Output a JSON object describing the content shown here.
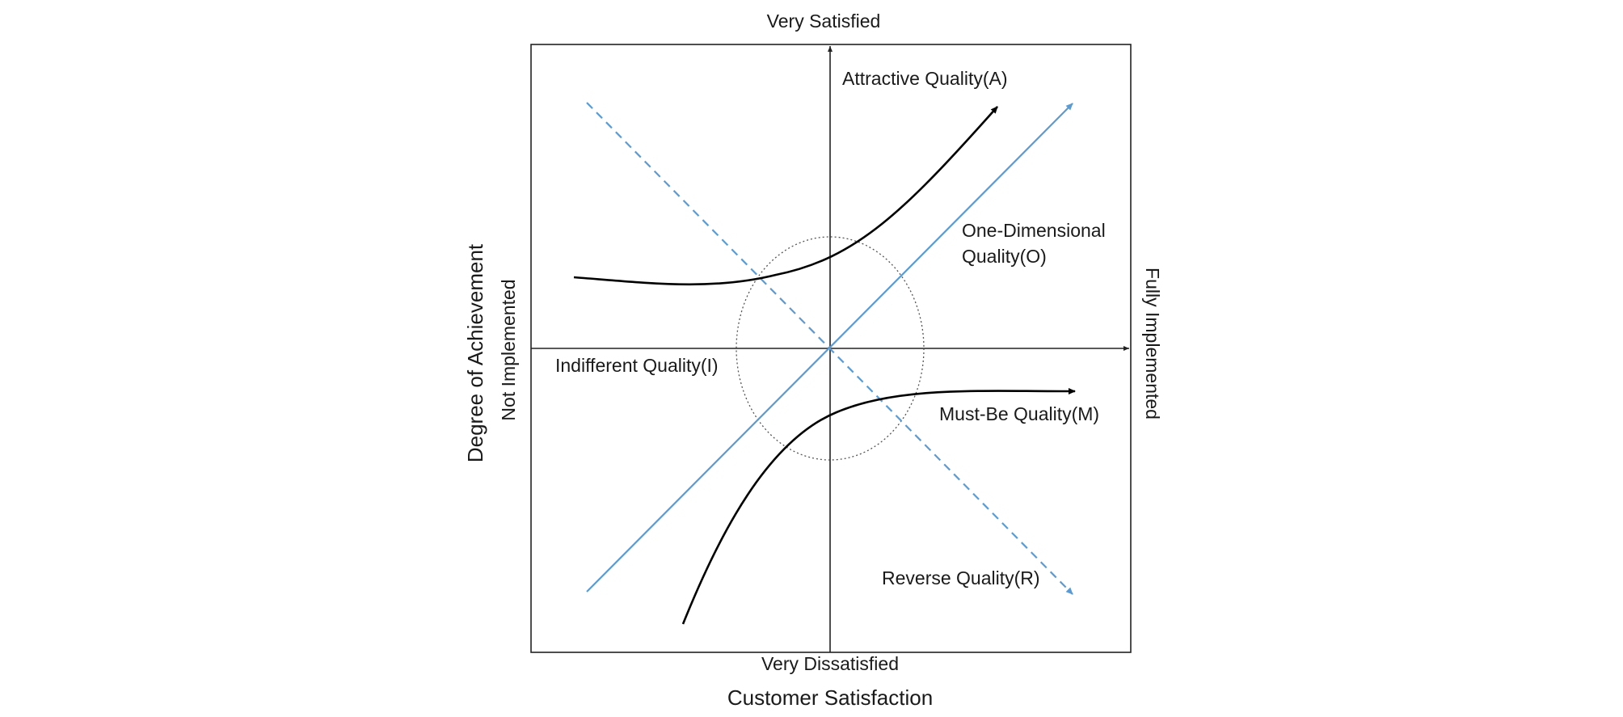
{
  "diagram": {
    "top_label": "Very Satisfied",
    "bottom_label": "Very Dissatisfied",
    "left_label": "Not Implemented",
    "right_label": "Fully Implemented",
    "x_axis_title": "Customer Satisfaction",
    "y_axis_title": "Degree of Achievement",
    "curves": {
      "attractive": "Attractive Quality(A)",
      "one_dimensional_line1": "One-Dimensional",
      "one_dimensional_line2": "Quality(O)",
      "indifferent": "Indifferent Quality(I)",
      "must_be": "Must-Be Quality(M)",
      "reverse": "Reverse Quality(R)"
    },
    "colors": {
      "line_blue": "#5b9bd5",
      "curve_black": "#000000",
      "frame": "#222222",
      "ellipse_dotted": "#555555"
    }
  }
}
